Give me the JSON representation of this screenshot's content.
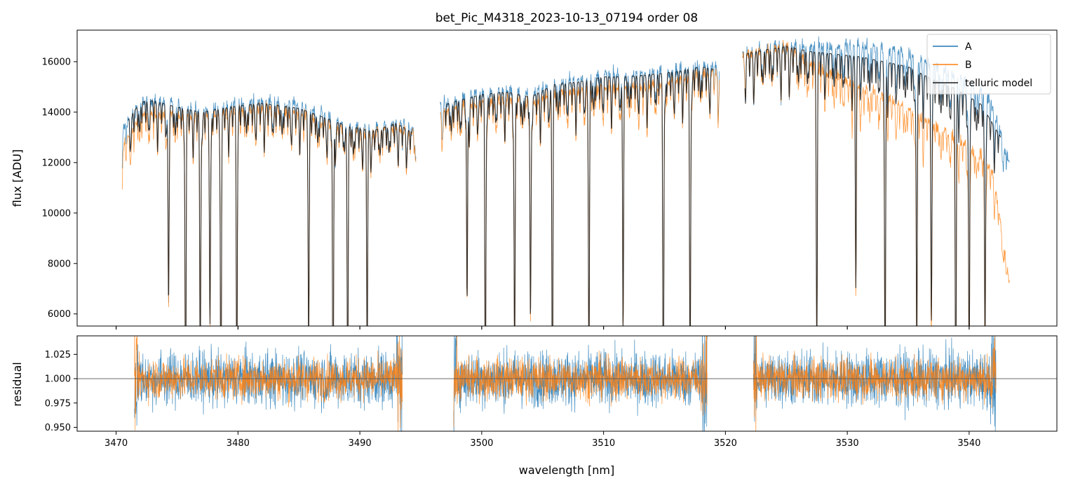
{
  "chart_data": [
    {
      "panel": "main",
      "type": "line",
      "title": "bet_Pic_M4318_2023-10-13_07194  order 08",
      "xlabel": "",
      "ylabel": "flux [ADU]",
      "xlim": [
        3466.8,
        3547.2
      ],
      "ylim": [
        5520,
        17250
      ],
      "x_ticks": [
        3470,
        3480,
        3490,
        3500,
        3510,
        3520,
        3530,
        3540
      ],
      "y_ticks": [
        6000,
        8000,
        10000,
        12000,
        14000,
        16000
      ],
      "y_tick_labels": [
        "6000",
        "8000",
        "10000",
        "12000",
        "14000",
        "16000"
      ],
      "legend": {
        "placement": "top-right",
        "entries": [
          {
            "label": "A",
            "color": "#1f77b4"
          },
          {
            "label": "B",
            "color": "#ff7f0e"
          },
          {
            "label": "telluric model",
            "color": "#1a1a1a"
          }
        ]
      },
      "series": [
        {
          "name": "A",
          "color": "#1f77b4",
          "segments": [
            {
              "range": [
                3470.5,
                3494.6
              ],
              "x": [
                3470.5,
                3471.0,
                3472.0,
                3473.0,
                3475.0,
                3477.0,
                3480.0,
                3482.0,
                3485.0,
                3487.0,
                3489.0,
                3491.0,
                3493.0,
                3494.6
              ],
              "y": [
                13300,
                13700,
                14450,
                14500,
                14300,
                14050,
                14350,
                14450,
                14300,
                13900,
                13500,
                13300,
                13600,
                13200
              ]
            },
            {
              "range": [
                3496.6,
                3519.5
              ],
              "x": [
                3496.6,
                3498.0,
                3500.0,
                3502.0,
                3504.0,
                3506.0,
                3508.0,
                3510.0,
                3512.0,
                3514.0,
                3516.0,
                3518.0,
                3519.5
              ],
              "y": [
                14350,
                14500,
                14800,
                14900,
                14700,
                15200,
                15300,
                15500,
                15500,
                15600,
                15700,
                15900,
                15800
              ]
            },
            {
              "range": [
                3521.4,
                3543.3
              ],
              "x": [
                3521.4,
                3523.0,
                3525.0,
                3527.0,
                3529.0,
                3531.0,
                3533.0,
                3535.0,
                3537.0,
                3539.0,
                3541.0,
                3542.0,
                3543.3
              ],
              "y": [
                16300,
                16500,
                16650,
                16600,
                16650,
                16700,
                16550,
                16350,
                15900,
                15400,
                14900,
                14200,
                12000
              ]
            }
          ]
        },
        {
          "name": "B",
          "color": "#ff7f0e",
          "segments": [
            {
              "range": [
                3470.5,
                3494.6
              ],
              "x": [
                3470.5,
                3471.0,
                3472.0,
                3473.0,
                3475.0,
                3477.0,
                3480.0,
                3482.0,
                3485.0,
                3487.0,
                3489.0,
                3491.0,
                3493.0,
                3494.6
              ],
              "y": [
                12500,
                13000,
                13900,
                14000,
                13900,
                13850,
                14050,
                14150,
                13950,
                13600,
                13300,
                13150,
                13450,
                13100
              ]
            },
            {
              "range": [
                3496.6,
                3519.5
              ],
              "x": [
                3496.6,
                3498.0,
                3500.0,
                3502.0,
                3504.0,
                3506.0,
                3508.0,
                3510.0,
                3512.0,
                3514.0,
                3516.0,
                3518.0,
                3519.5
              ],
              "y": [
                14000,
                14150,
                14400,
                14500,
                14350,
                14800,
                14850,
                15000,
                14950,
                15100,
                15300,
                15550,
                15500
              ]
            },
            {
              "range": [
                3521.4,
                3543.3
              ],
              "x": [
                3521.4,
                3523.0,
                3525.0,
                3527.0,
                3529.0,
                3531.0,
                3533.0,
                3535.0,
                3537.0,
                3539.0,
                3541.0,
                3542.0,
                3543.3
              ],
              "y": [
                16300,
                16350,
                16600,
                15900,
                15500,
                15000,
                14700,
                14100,
                13600,
                12900,
                12300,
                11500,
                7200
              ]
            }
          ]
        },
        {
          "name": "telluric model",
          "color": "#1a1a1a",
          "segments": [
            {
              "range": [
                3471.0,
                3494.3
              ],
              "x": [
                3471.0,
                3472.0,
                3473.0,
                3475.0,
                3477.0,
                3480.0,
                3482.0,
                3485.0,
                3487.0,
                3489.0,
                3491.0,
                3493.0,
                3494.3
              ],
              "y": [
                13700,
                14400,
                14450,
                14200,
                14000,
                14250,
                14350,
                14150,
                13800,
                13450,
                13250,
                13550,
                13200
              ]
            },
            {
              "range": [
                3497.0,
                3519.0
              ],
              "x": [
                3497.0,
                3498.0,
                3500.0,
                3502.0,
                3504.0,
                3506.0,
                3508.0,
                3510.0,
                3512.0,
                3514.0,
                3516.0,
                3518.0,
                3519.0
              ],
              "y": [
                14300,
                14450,
                14700,
                14800,
                14600,
                15100,
                15200,
                15400,
                15400,
                15500,
                15600,
                15800,
                15700
              ]
            },
            {
              "range": [
                3521.6,
                3542.6
              ],
              "x": [
                3521.6,
                3523.0,
                3525.0,
                3527.0,
                3529.0,
                3531.0,
                3533.0,
                3535.0,
                3537.0,
                3539.0,
                3541.0,
                3542.6
              ],
              "y": [
                16300,
                16450,
                16600,
                16400,
                16300,
                16200,
                16000,
                15800,
                15300,
                14900,
                14300,
                13000
              ]
            }
          ]
        }
      ],
      "absorption_lines_nm": [
        3474.3,
        3475.7,
        3476.9,
        3477.7,
        3478.6,
        3479.9,
        3485.8,
        3487.8,
        3489.0,
        3490.6,
        3498.8,
        3500.3,
        3502.7,
        3504.0,
        3505.8,
        3508.8,
        3511.6,
        3514.9,
        3517.1,
        3527.5,
        3530.7,
        3533.1,
        3535.7,
        3536.9,
        3538.9,
        3540.0,
        3541.3
      ]
    },
    {
      "panel": "residual",
      "type": "line",
      "title": "",
      "xlabel": "wavelength [nm]",
      "ylabel": "residual",
      "xlim": [
        3466.8,
        3547.2
      ],
      "ylim": [
        0.946,
        1.044
      ],
      "x_ticks": [
        3470,
        3480,
        3490,
        3500,
        3510,
        3520,
        3530,
        3540
      ],
      "y_ticks": [
        0.95,
        0.975,
        1.0,
        1.025
      ],
      "y_tick_labels": [
        "0.950",
        "0.975",
        "1.000",
        "1.025"
      ],
      "reference_line": 1.0,
      "series": [
        {
          "name": "A",
          "color": "#1f77b4",
          "mean": 1.0,
          "spread": 0.02
        },
        {
          "name": "B",
          "color": "#ff7f0e",
          "mean": 1.0,
          "spread": 0.015
        }
      ],
      "segments_nm": [
        [
          3471.5,
          3493.5
        ],
        [
          3497.7,
          3518.5
        ],
        [
          3522.3,
          3542.2
        ]
      ]
    }
  ]
}
